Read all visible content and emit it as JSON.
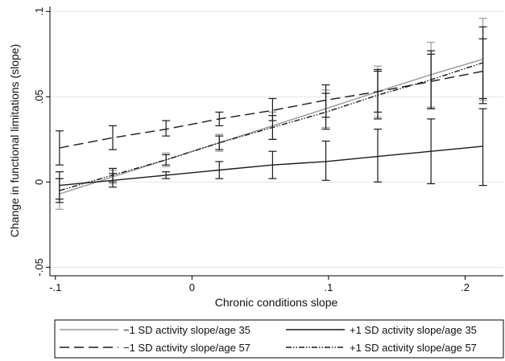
{
  "chart_data": {
    "type": "line",
    "xlabel": "Chronic conditions slope",
    "ylabel": "Change in functional limitations (slope)",
    "xlim": [
      -0.104,
      0.228
    ],
    "ylim": [
      -0.055,
      0.103
    ],
    "x_ticks": [
      {
        "value": -0.1,
        "label": "-.1"
      },
      {
        "value": 0,
        "label": "0"
      },
      {
        "value": 0.1,
        "label": ".1"
      },
      {
        "value": 0.2,
        "label": ".2"
      }
    ],
    "y_ticks": [
      {
        "value": -0.05,
        "label": "-.05"
      },
      {
        "value": 0,
        "label": "0"
      },
      {
        "value": 0.05,
        "label": ".05"
      },
      {
        "value": 0.1,
        "label": ".1"
      }
    ],
    "grid": true,
    "legend_position": "bottom",
    "x": [
      -0.097,
      -0.058,
      -0.019,
      0.02,
      0.059,
      0.098,
      0.136,
      0.175,
      0.213
    ],
    "series": [
      {
        "name": "−1 SD activity slope/age 35",
        "color": "#999999",
        "dash": "",
        "values": [
          -0.007,
          0.003,
          0.013,
          0.023,
          0.033,
          0.043,
          0.053,
          0.063,
          0.072
        ],
        "lower": [
          -0.016,
          -0.001,
          0.009,
          0.018,
          0.025,
          0.032,
          0.038,
          0.044,
          0.048
        ],
        "upper": [
          0.002,
          0.007,
          0.017,
          0.028,
          0.041,
          0.054,
          0.068,
          0.082,
          0.096
        ]
      },
      {
        "name": "+1 SD activity slope/age 35",
        "color": "#1a1a1a",
        "dash": "",
        "values": [
          -0.002,
          0.001,
          0.004,
          0.007,
          0.01,
          0.012,
          0.015,
          0.018,
          0.021
        ],
        "lower": [
          -0.01,
          -0.003,
          0.002,
          0.002,
          0.002,
          0.001,
          0.0,
          -0.001,
          -0.002
        ],
        "upper": [
          0.006,
          0.005,
          0.006,
          0.012,
          0.018,
          0.024,
          0.031,
          0.037,
          0.043
        ]
      },
      {
        "name": "−1 SD activity slope/age 57",
        "color": "#1a1a1a",
        "dash": "12,6",
        "values": [
          0.02,
          0.026,
          0.031,
          0.037,
          0.042,
          0.048,
          0.053,
          0.059,
          0.065
        ],
        "lower": [
          0.01,
          0.019,
          0.027,
          0.033,
          0.036,
          0.038,
          0.041,
          0.043,
          0.046
        ],
        "upper": [
          0.03,
          0.033,
          0.036,
          0.041,
          0.049,
          0.057,
          0.066,
          0.075,
          0.084
        ]
      },
      {
        "name": "+1 SD activity slope/age 57",
        "color": "#1a1a1a",
        "dash": "7,2,1.5,2,1.5,2",
        "values": [
          -0.005,
          0.004,
          0.013,
          0.023,
          0.032,
          0.041,
          0.051,
          0.06,
          0.07
        ],
        "lower": [
          -0.012,
          0.0,
          0.01,
          0.019,
          0.025,
          0.031,
          0.037,
          0.043,
          0.049
        ],
        "upper": [
          0.002,
          0.008,
          0.016,
          0.027,
          0.039,
          0.052,
          0.065,
          0.077,
          0.091
        ]
      }
    ]
  }
}
